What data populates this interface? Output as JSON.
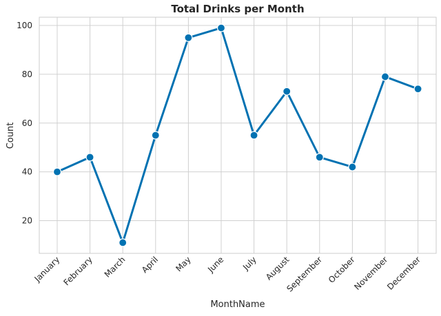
{
  "chart_data": {
    "type": "line",
    "title": "Total Drinks per Month",
    "xlabel": "MonthName",
    "ylabel": "Count",
    "categories": [
      "January",
      "February",
      "March",
      "April",
      "May",
      "June",
      "July",
      "August",
      "September",
      "October",
      "November",
      "December"
    ],
    "series": [
      {
        "values": [
          40,
          46,
          11,
          55,
          95,
          99,
          55,
          73,
          46,
          42,
          79,
          74
        ]
      }
    ],
    "ylim": [
      6.6,
      103.4
    ],
    "yticks": [
      20,
      40,
      60,
      80,
      100
    ],
    "grid": true,
    "legend": "none",
    "colors": {
      "line": "#0072b2",
      "grid": "#d0d0d0",
      "spine": "#cccccc",
      "text": "#262626"
    }
  }
}
